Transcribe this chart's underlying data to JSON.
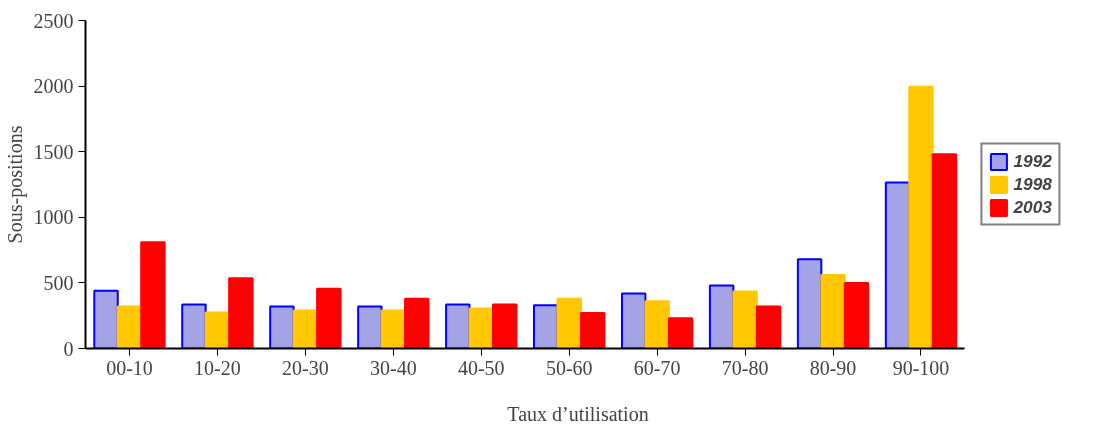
{
  "chart_data": {
    "type": "bar",
    "xlabel": "Taux d’utilisation",
    "ylabel": "Sous-positions",
    "categories": [
      "00-10",
      "10-20",
      "20-30",
      "30-40",
      "40-50",
      "50-60",
      "60-70",
      "70-80",
      "80-90",
      "90-100"
    ],
    "series": [
      {
        "name": "1992",
        "color": "#a3a3e6",
        "values": [
          440,
          335,
          320,
          320,
          335,
          330,
          420,
          480,
          680,
          1265
        ]
      },
      {
        "name": "1998",
        "color": "#ffc800",
        "values": [
          320,
          275,
          290,
          290,
          305,
          380,
          360,
          435,
          560,
          1995
        ]
      },
      {
        "name": "2003",
        "color": "#ff0000",
        "values": [
          810,
          535,
          455,
          380,
          335,
          270,
          230,
          320,
          500,
          1480
        ]
      }
    ],
    "ylim": [
      0,
      2500
    ],
    "yticks": [
      0,
      500,
      1000,
      1500,
      2000,
      2500
    ],
    "grid": false,
    "legend": "right"
  }
}
